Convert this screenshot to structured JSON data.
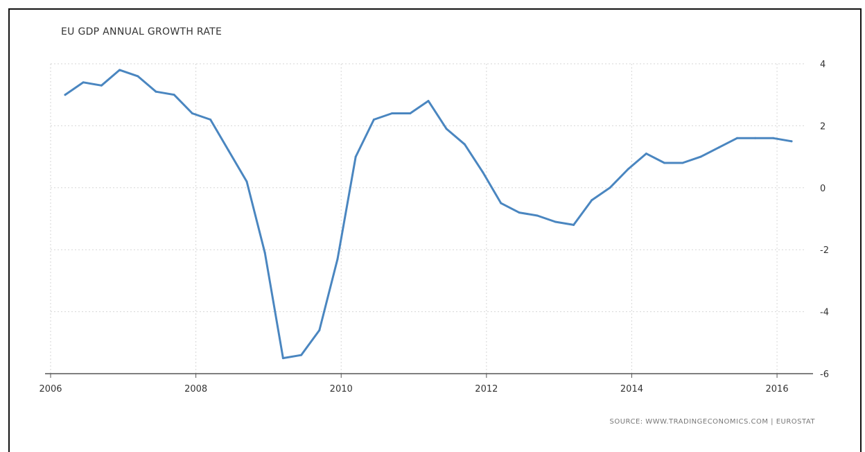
{
  "chart_data": {
    "type": "line",
    "title": "EU GDP ANNUAL GROWTH RATE",
    "source": "SOURCE: WWW.TRADINGECONOMICS.COM | EUROSTAT",
    "xlabel": "",
    "ylabel": "",
    "xlim": [
      2006,
      2016.4
    ],
    "ylim": [
      -6,
      4
    ],
    "x_ticks": [
      2006,
      2008,
      2010,
      2012,
      2014,
      2016
    ],
    "x_tick_labels": [
      "2006",
      "2008",
      "2010",
      "2012",
      "2014",
      "2016"
    ],
    "y_ticks": [
      4,
      2,
      0,
      -2,
      -4,
      -6
    ],
    "y_tick_labels": [
      "4",
      "2",
      "0",
      "-2",
      "-4",
      "-6"
    ],
    "y_axis_side": "right",
    "grid": true,
    "line_color": "#4a86c0",
    "series": [
      {
        "x": [
          2006.2,
          2006.45,
          2006.7,
          2006.95,
          2007.2,
          2007.45,
          2007.7,
          2007.95,
          2008.2,
          2008.45,
          2008.7,
          2008.95,
          2009.2,
          2009.45,
          2009.7,
          2009.95,
          2010.2,
          2010.45,
          2010.7,
          2010.95,
          2011.2,
          2011.45,
          2011.7,
          2011.95,
          2012.2,
          2012.45,
          2012.7,
          2012.95,
          2013.2,
          2013.45,
          2013.7,
          2013.95,
          2014.2,
          2014.45,
          2014.7,
          2014.95,
          2015.2,
          2015.45,
          2015.7,
          2015.95,
          2016.2
        ],
        "values": [
          3.0,
          3.4,
          3.3,
          3.8,
          3.6,
          3.1,
          3.0,
          2.4,
          2.2,
          1.2,
          0.2,
          -2.1,
          -5.5,
          -5.4,
          -4.6,
          -2.3,
          1.0,
          2.2,
          2.4,
          2.4,
          2.8,
          1.9,
          1.4,
          0.5,
          -0.5,
          -0.8,
          -0.9,
          -1.1,
          -1.2,
          -0.4,
          0.0,
          0.6,
          1.1,
          0.8,
          0.8,
          1.0,
          1.3,
          1.6,
          1.6,
          1.6,
          1.5
        ]
      }
    ]
  }
}
